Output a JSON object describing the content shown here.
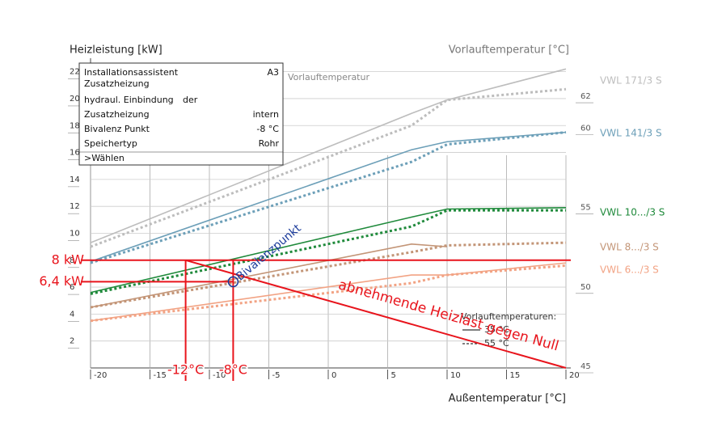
{
  "chart_data": {
    "type": "line",
    "ylabel": "Heizleistung [kW]",
    "y2label": "Vorlauftemperatur [°C]",
    "xlabel": "Außentemperatur [°C]",
    "x": [
      -20,
      7,
      10,
      20
    ],
    "xlim": [
      -20,
      20
    ],
    "xticks": [
      -20,
      -15,
      -10,
      -5,
      0,
      5,
      10,
      15,
      20
    ],
    "ylim": [
      0,
      23
    ],
    "yticks": [
      2,
      4,
      6,
      8,
      10,
      12,
      14,
      16,
      18,
      20,
      22
    ],
    "y2lim": [
      45,
      64.5
    ],
    "y2ticks": [
      45,
      50,
      55,
      60,
      62
    ],
    "grid": true,
    "series": [
      {
        "name": "VWL 171/3 S",
        "color": "#bdbdbd",
        "lines": [
          {
            "style": "solid",
            "values": [
              9.3,
              18.9,
              19.9,
              22.2
            ]
          },
          {
            "style": "dotted",
            "values": [
              9.0,
              18.0,
              19.9,
              20.7
            ]
          }
        ]
      },
      {
        "name": "VWL 141/3 S",
        "color": "#6c9fb8",
        "lines": [
          {
            "style": "solid",
            "values": [
              7.9,
              16.2,
              16.8,
              17.5
            ]
          },
          {
            "style": "dotted",
            "values": [
              7.8,
              15.3,
              16.6,
              17.5
            ]
          }
        ]
      },
      {
        "name": "VWL 10.../3 S",
        "color": "#1f8a3b",
        "lines": [
          {
            "style": "solid",
            "values": [
              5.6,
              11.2,
              11.8,
              11.9
            ]
          },
          {
            "style": "dotted",
            "values": [
              5.5,
              10.5,
              11.7,
              11.7
            ]
          }
        ]
      },
      {
        "name": "VWL 8.../3 S",
        "color": "#c39577",
        "lines": [
          {
            "style": "solid",
            "values": [
              4.5,
              9.2,
              9.0,
              null
            ]
          },
          {
            "style": "dotted",
            "values": [
              4.5,
              8.6,
              9.1,
              9.3
            ]
          }
        ]
      },
      {
        "name": "VWL 6.../3 S",
        "color": "#f2a384",
        "lines": [
          {
            "style": "solid",
            "values": [
              3.5,
              6.9,
              6.9,
              7.8
            ]
          },
          {
            "style": "dotted",
            "values": [
              3.5,
              6.3,
              6.9,
              7.6
            ]
          }
        ]
      }
    ],
    "line_legend": {
      "title": "Vorlauftemperaturen:",
      "items": [
        {
          "style": "solid",
          "label": "35 °C"
        },
        {
          "style": "dotted",
          "label": "55 °C"
        }
      ]
    },
    "panel_label": "Vorlauftemperatur",
    "annotations": {
      "color": "#e8141c",
      "hlines": [
        {
          "value": 8,
          "label": "8 kW"
        },
        {
          "value": 6.4,
          "label": "6,4 kW"
        }
      ],
      "vlines": [
        {
          "value": -12,
          "label": "-12°C"
        },
        {
          "value": -8,
          "label": "-8°C"
        }
      ],
      "bivalence": {
        "x": -8,
        "y": 6.4,
        "label": "Bivalenzpunkt",
        "color": "#1a3a9a"
      },
      "decline": {
        "x": [
          -12,
          20
        ],
        "y": [
          8,
          0
        ],
        "label": "abnehmende Heizlast gegen Null"
      }
    }
  },
  "display": {
    "rows": [
      [
        "Installationsassistent",
        "A3"
      ],
      [
        "Zusatzheizung",
        ""
      ],
      [
        "hydraul. Einbindung",
        "der"
      ],
      [
        "Zusatzheizung",
        "intern"
      ],
      [
        "Bivalenz Punkt",
        "-8 °C"
      ],
      [
        "Speichertyp",
        "Rohr"
      ],
      [
        ">Wählen",
        ""
      ]
    ]
  }
}
